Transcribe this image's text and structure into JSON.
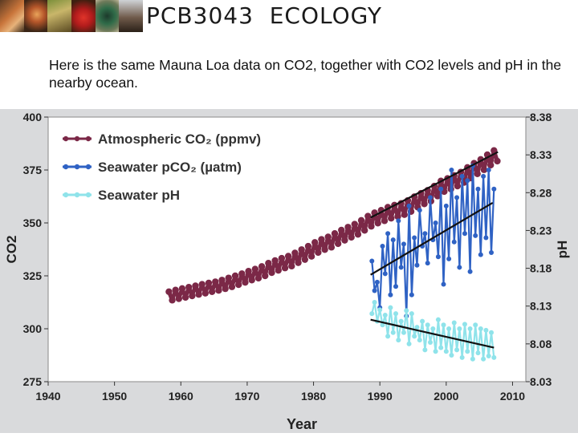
{
  "header": {
    "course_title": "PCB3043  ECOLOGY",
    "banner_images": [
      "mushroom-photo",
      "mushroom-photo",
      "insect-photo",
      "frog-photo",
      "beetle-photo",
      "bird-photo"
    ]
  },
  "intro_text": "Here is the same Mauna Loa data on CO2, together with CO2 levels and pH in the nearby ocean.",
  "colors": {
    "atmospheric": "#7b2847",
    "pco2": "#2f62c4",
    "ph": "#8fe3ea",
    "trend": "#111111",
    "frame": "#d9dadc"
  },
  "chart_data": {
    "type": "line",
    "xlabel": "Year",
    "ylabel": "CO2",
    "ylabel_right": "pH",
    "xlim": [
      1940,
      2012
    ],
    "ylim": [
      275,
      400
    ],
    "ylim_right": [
      8.03,
      8.38
    ],
    "x_ticks": [
      1940,
      1950,
      1960,
      1970,
      1980,
      1990,
      2000,
      2010
    ],
    "y_ticks": [
      275,
      300,
      325,
      350,
      375,
      400
    ],
    "y_ticks_right": [
      "8.03",
      "8.08",
      "8.13",
      "8.18",
      "8.23",
      "8.28",
      "8.33",
      "8.38"
    ],
    "legend": [
      {
        "label": "Atmospheric CO₂ (ppmv)",
        "series": "atmospheric"
      },
      {
        "label": "Seawater pCO₂ (µatm)",
        "series": "pco2"
      },
      {
        "label": "Seawater pH",
        "series": "ph"
      }
    ],
    "series": [
      {
        "name": "Atmospheric CO2 (ppmv)",
        "key": "atmospheric",
        "axis": "left",
        "x": [
          1958.2,
          1958.7,
          1959.2,
          1959.7,
          1960.2,
          1960.7,
          1961.2,
          1961.7,
          1962.2,
          1962.7,
          1963.2,
          1963.7,
          1964.2,
          1964.7,
          1965.2,
          1965.7,
          1966.2,
          1966.7,
          1967.2,
          1967.7,
          1968.2,
          1968.7,
          1969.2,
          1969.7,
          1970.2,
          1970.7,
          1971.2,
          1971.7,
          1972.2,
          1972.7,
          1973.2,
          1973.7,
          1974.2,
          1974.7,
          1975.2,
          1975.7,
          1976.2,
          1976.7,
          1977.2,
          1977.7,
          1978.2,
          1978.7,
          1979.2,
          1979.7,
          1980.2,
          1980.7,
          1981.2,
          1981.7,
          1982.2,
          1982.7,
          1983.2,
          1983.7,
          1984.2,
          1984.7,
          1985.2,
          1985.7,
          1986.2,
          1986.7,
          1987.2,
          1987.7,
          1988.2,
          1988.7,
          1989.2,
          1989.7,
          1990.2,
          1990.7,
          1991.2,
          1991.7,
          1992.2,
          1992.7,
          1993.2,
          1993.7,
          1994.2,
          1994.7,
          1995.2,
          1995.7,
          1996.2,
          1996.7,
          1997.2,
          1997.7,
          1998.2,
          1998.7,
          1999.2,
          1999.7,
          2000.2,
          2000.7,
          2001.2,
          2001.7,
          2002.2,
          2002.7,
          2003.2,
          2003.7,
          2004.2,
          2004.7,
          2005.2,
          2005.7,
          2006.2,
          2006.7,
          2007.2,
          2007.7
        ],
        "y": [
          317.5,
          313.5,
          318.3,
          314.2,
          319.0,
          314.8,
          319.6,
          315.5,
          320.3,
          316.2,
          321.0,
          316.8,
          321.6,
          317.5,
          322.2,
          318.1,
          323.0,
          318.9,
          324.0,
          319.8,
          325.0,
          320.8,
          326.0,
          321.9,
          327.2,
          323.0,
          328.2,
          323.9,
          329.4,
          325.0,
          331.0,
          326.5,
          332.2,
          327.6,
          333.3,
          328.7,
          334.3,
          329.6,
          335.8,
          331.2,
          337.4,
          332.7,
          339.0,
          334.2,
          340.8,
          336.0,
          342.2,
          337.4,
          343.4,
          338.5,
          345.0,
          340.2,
          346.6,
          341.8,
          348.0,
          343.2,
          349.4,
          344.6,
          351.2,
          346.5,
          353.2,
          348.4,
          354.8,
          349.9,
          356.0,
          351.0,
          357.4,
          352.2,
          358.4,
          353.0,
          359.2,
          353.9,
          360.6,
          355.4,
          362.4,
          357.4,
          364.0,
          359.0,
          365.4,
          360.3,
          367.4,
          362.7,
          369.8,
          364.8,
          371.0,
          366.0,
          372.4,
          367.4,
          374.0,
          369.1,
          376.2,
          371.2,
          378.2,
          373.2,
          380.0,
          375.1,
          382.2,
          377.3,
          384.2,
          379.2
        ]
      },
      {
        "name": "Seawater pCO2 (µatm)",
        "key": "pco2",
        "axis": "left",
        "x": [
          1988.8,
          1989.2,
          1989.6,
          1990.0,
          1990.4,
          1990.8,
          1991.2,
          1991.6,
          1992.0,
          1992.4,
          1992.8,
          1993.2,
          1993.6,
          1994.0,
          1994.4,
          1994.8,
          1995.2,
          1995.6,
          1996.0,
          1996.4,
          1996.8,
          1997.2,
          1997.6,
          1998.0,
          1998.4,
          1998.8,
          1999.2,
          1999.6,
          2000.0,
          2000.4,
          2000.8,
          2001.2,
          2001.6,
          2002.0,
          2002.4,
          2002.8,
          2003.2,
          2003.6,
          2004.0,
          2004.4,
          2004.8,
          2005.2,
          2005.6,
          2006.0,
          2006.4,
          2006.8,
          2007.2
        ],
        "y": [
          332,
          318,
          322,
          310,
          339,
          326,
          345,
          316,
          342,
          320,
          351,
          329,
          340,
          306,
          358,
          316,
          343,
          330,
          356,
          339,
          345,
          331,
          362,
          342,
          350,
          334,
          366,
          321,
          358,
          333,
          375,
          341,
          362,
          329,
          372,
          345,
          370,
          327,
          377,
          344,
          366,
          335,
          372,
          343,
          375,
          336,
          366
        ]
      },
      {
        "name": "Seawater pH",
        "key": "ph",
        "axis": "right",
        "x": [
          1988.8,
          1989.2,
          1989.6,
          1990.0,
          1990.4,
          1990.8,
          1991.2,
          1991.6,
          1992.0,
          1992.4,
          1992.8,
          1993.2,
          1993.6,
          1994.0,
          1994.4,
          1994.8,
          1995.2,
          1995.6,
          1996.0,
          1996.4,
          1996.8,
          1997.2,
          1997.6,
          1998.0,
          1998.4,
          1998.8,
          1999.2,
          1999.6,
          2000.0,
          2000.4,
          2000.8,
          2001.2,
          2001.6,
          2002.0,
          2002.4,
          2002.8,
          2003.2,
          2003.6,
          2004.0,
          2004.4,
          2004.8,
          2005.2,
          2005.6,
          2006.0,
          2006.4,
          2006.8,
          2007.2
        ],
        "y": [
          8.12,
          8.135,
          8.11,
          8.125,
          8.105,
          8.118,
          8.09,
          8.128,
          8.095,
          8.12,
          8.085,
          8.11,
          8.095,
          8.124,
          8.08,
          8.12,
          8.09,
          8.102,
          8.085,
          8.11,
          8.072,
          8.105,
          8.082,
          8.1,
          8.07,
          8.112,
          8.075,
          8.105,
          8.07,
          8.1,
          8.065,
          8.108,
          8.072,
          8.1,
          8.062,
          8.106,
          8.07,
          8.1,
          8.06,
          8.105,
          8.068,
          8.1,
          8.06,
          8.098,
          8.064,
          8.095,
          8.062
        ]
      }
    ],
    "trend_lines": [
      {
        "name": "atmospheric-trend",
        "axis": "left",
        "x": [
          1988.6,
          2007.8
        ],
        "y": [
          352.5,
          383.5
        ]
      },
      {
        "name": "pco2-trend",
        "axis": "left",
        "x": [
          1988.6,
          2007.0
        ],
        "y": [
          325.5,
          359.5
        ]
      },
      {
        "name": "ph-trend",
        "axis": "right",
        "x": [
          1988.6,
          2007.2
        ],
        "y": [
          8.112,
          8.075
        ]
      }
    ]
  }
}
